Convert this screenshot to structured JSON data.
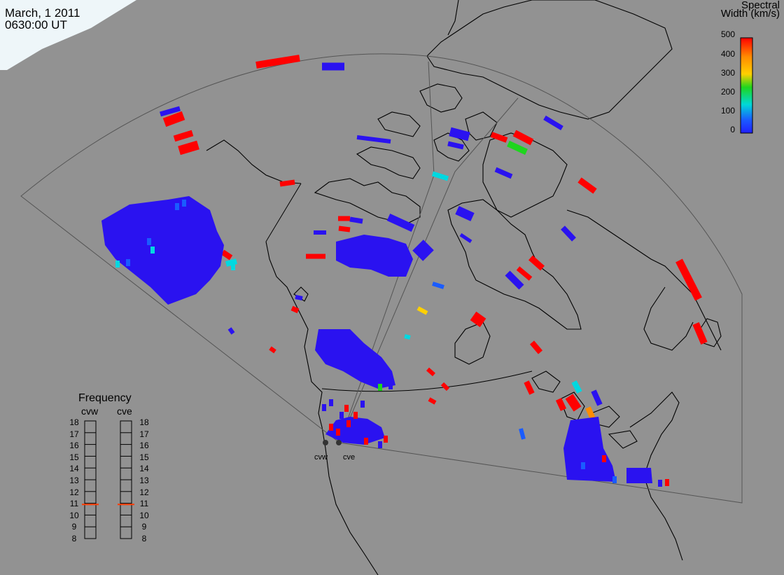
{
  "header": {
    "date": "March, 1 2011",
    "time": "0630:00 UT"
  },
  "colorbar": {
    "title_line1": "Spectral",
    "title_line2": "Width (km/s)",
    "ticks": [
      "500",
      "400",
      "300",
      "200",
      "100",
      "0"
    ],
    "colors": [
      "#ff0000",
      "#ff8c00",
      "#ffd000",
      "#1ed61e",
      "#00d8d8",
      "#1a5cff",
      "#2020ff"
    ]
  },
  "frequency": {
    "title": "Frequency",
    "radars": [
      "cvw",
      "cve"
    ],
    "scale": [
      "18",
      "17",
      "16",
      "15",
      "14",
      "13",
      "12",
      "11",
      "10",
      "9",
      "8"
    ],
    "cvw_mhz": 10.9,
    "cve_mhz": 10.9
  },
  "stations": [
    {
      "name": "cvw"
    },
    {
      "name": "cve"
    }
  ]
}
